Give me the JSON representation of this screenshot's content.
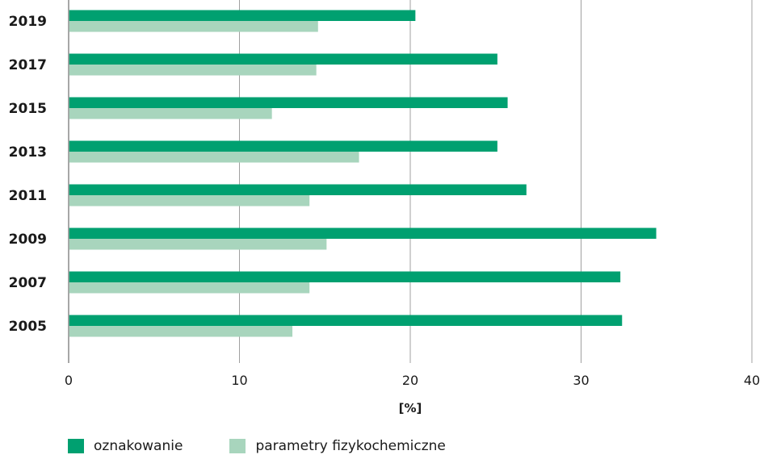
{
  "chart_data": {
    "type": "bar",
    "orientation": "horizontal",
    "categories": [
      "2019",
      "2017",
      "2015",
      "2013",
      "2011",
      "2009",
      "2007",
      "2005"
    ],
    "series": [
      {
        "name": "oznakowanie",
        "color": "#00a070",
        "values": [
          20.3,
          25.1,
          25.7,
          25.1,
          26.8,
          34.4,
          32.3,
          32.4
        ]
      },
      {
        "name": "parametry fizykochemiczne",
        "color": "#a8d5bd",
        "values": [
          14.6,
          14.5,
          11.9,
          17.0,
          14.1,
          15.1,
          14.1,
          13.1
        ]
      }
    ],
    "xlabel": "[%]",
    "ylabel": "",
    "xlim": [
      0,
      40
    ],
    "xticks": [
      "0",
      "10",
      "20",
      "30",
      "40"
    ],
    "grid": "vertical",
    "legend_position": "bottom-left"
  }
}
